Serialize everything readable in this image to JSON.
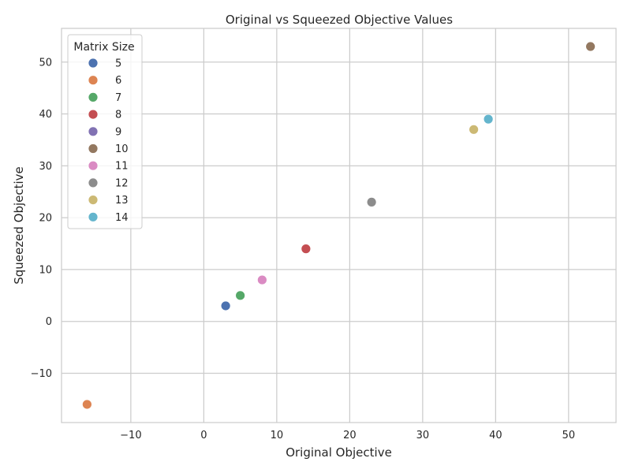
{
  "chart_data": {
    "type": "scatter",
    "title": "Original vs Squeezed Objective Values",
    "xlabel": "Original Objective",
    "ylabel": "Squeezed Objective",
    "xlim": [
      -19.5,
      56.5
    ],
    "ylim": [
      -19.5,
      56.5
    ],
    "x_ticks": [
      -10,
      0,
      10,
      20,
      30,
      40,
      50
    ],
    "y_ticks": [
      -10,
      0,
      10,
      20,
      30,
      40,
      50
    ],
    "grid": true,
    "legend_title": "Matrix Size",
    "legend_position": "top-left",
    "series": [
      {
        "name": "5",
        "color": "#4c72b0",
        "points": [
          {
            "x": 3,
            "y": 3
          }
        ]
      },
      {
        "name": "6",
        "color": "#dd8452",
        "points": [
          {
            "x": -16,
            "y": -16
          }
        ]
      },
      {
        "name": "7",
        "color": "#55a868",
        "points": [
          {
            "x": 5,
            "y": 5
          }
        ]
      },
      {
        "name": "8",
        "color": "#c44e52",
        "points": [
          {
            "x": 14,
            "y": 14
          }
        ]
      },
      {
        "name": "9",
        "color": "#8172b3",
        "points": []
      },
      {
        "name": "10",
        "color": "#937860",
        "points": [
          {
            "x": 53,
            "y": 53
          }
        ]
      },
      {
        "name": "11",
        "color": "#da8bc3",
        "points": [
          {
            "x": 8,
            "y": 8
          }
        ]
      },
      {
        "name": "12",
        "color": "#8c8c8c",
        "points": [
          {
            "x": 23,
            "y": 23
          }
        ]
      },
      {
        "name": "13",
        "color": "#ccb974",
        "points": [
          {
            "x": 37,
            "y": 37
          }
        ]
      },
      {
        "name": "14",
        "color": "#64b5cd",
        "points": [
          {
            "x": 39,
            "y": 39
          }
        ]
      }
    ]
  }
}
